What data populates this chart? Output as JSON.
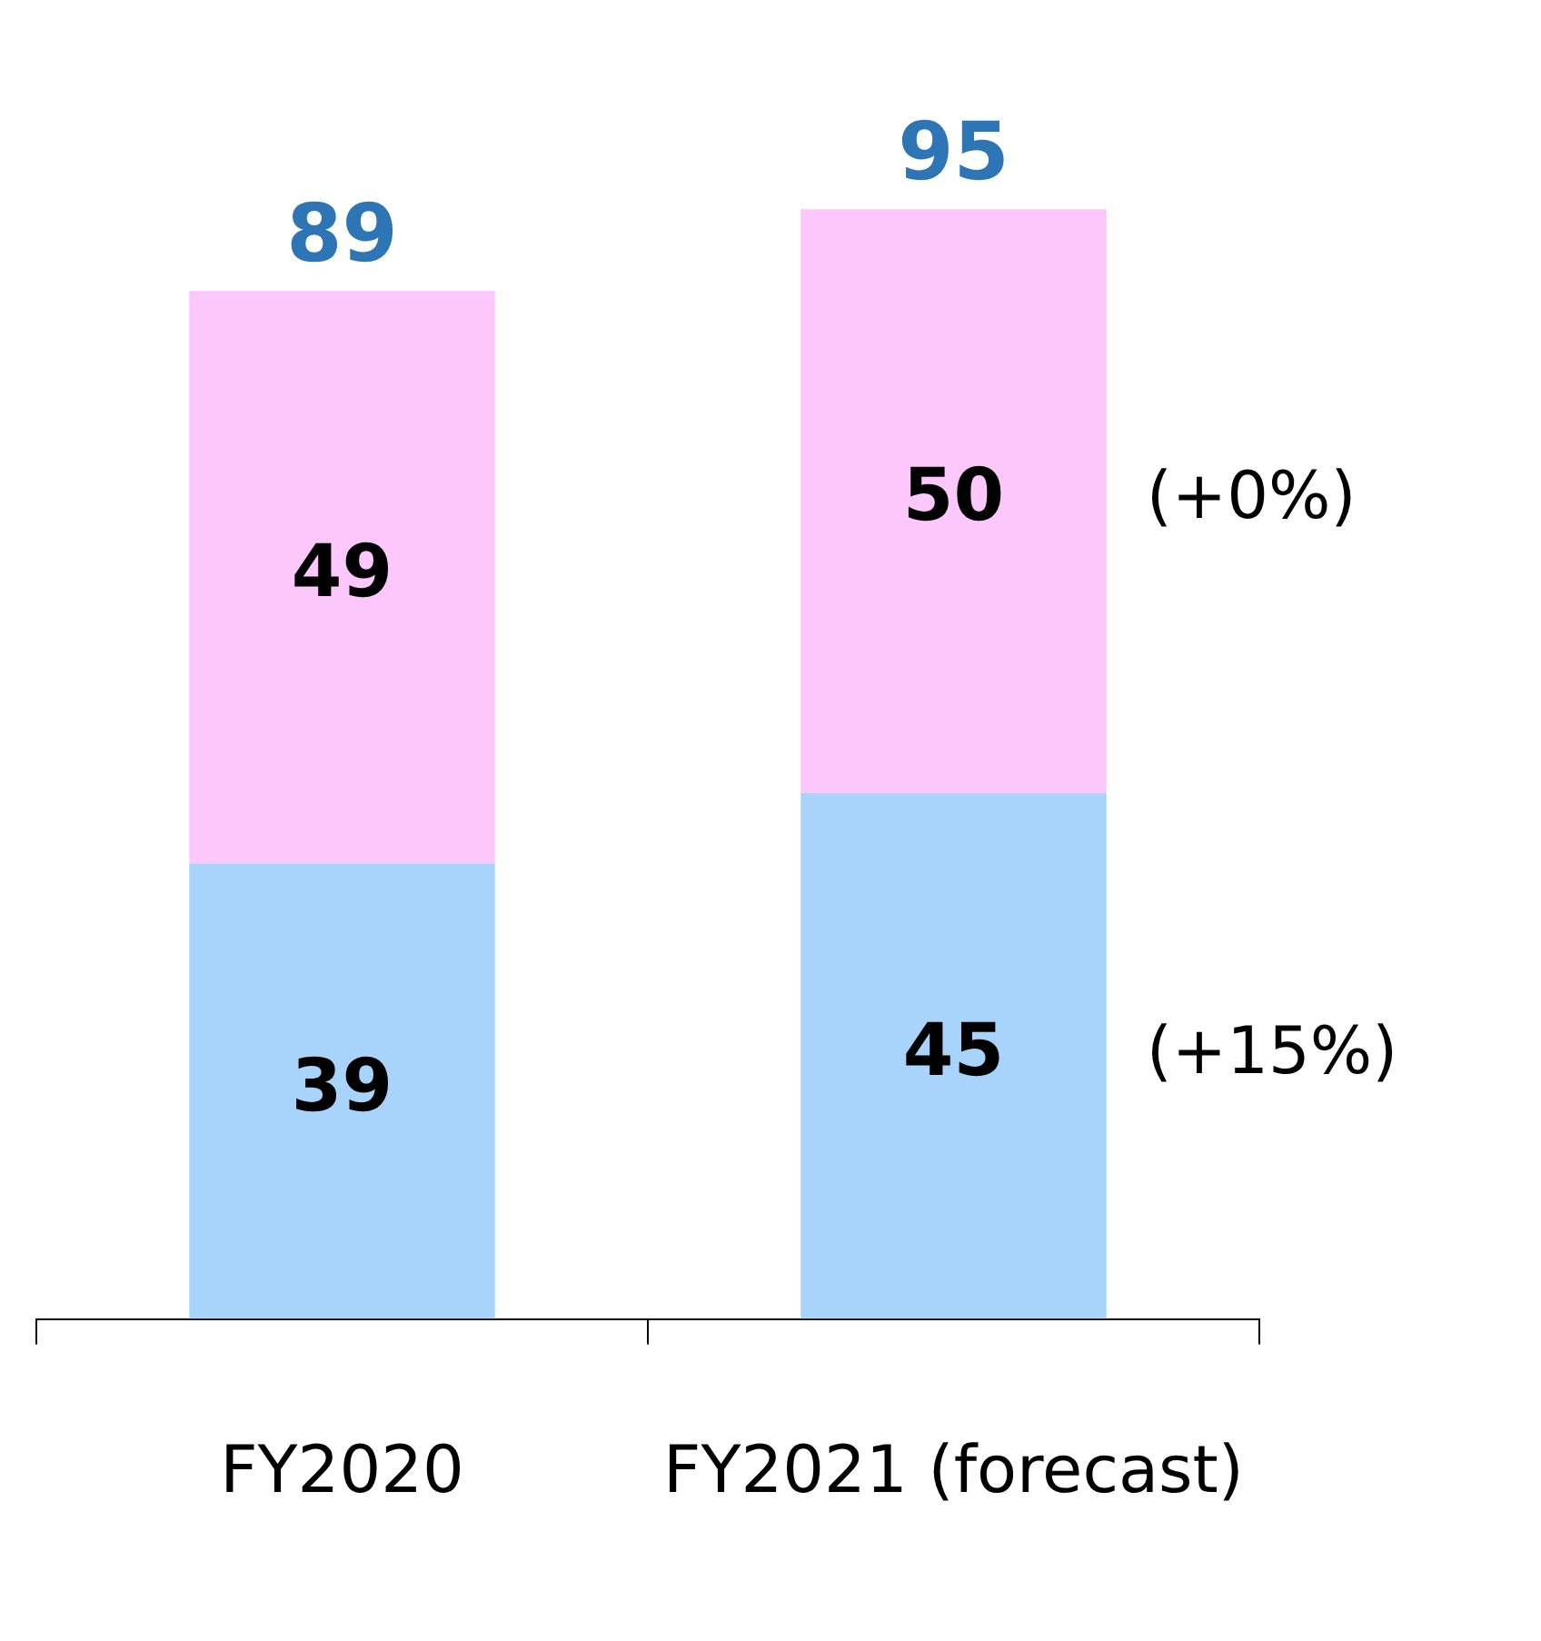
{
  "chart_data": {
    "type": "bar",
    "stacked": true,
    "categories": [
      "FY2020",
      "FY2021 (forecast)"
    ],
    "series": [
      {
        "color": "#a8d4fc",
        "values": [
          39,
          45
        ]
      },
      {
        "color": "#fcc8fc",
        "values": [
          49,
          50
        ]
      }
    ],
    "data_labels": true,
    "totals": [
      "89",
      "95"
    ],
    "annotations": [
      "(+0%)",
      "(+15%)"
    ],
    "grid": false,
    "legend": false
  }
}
